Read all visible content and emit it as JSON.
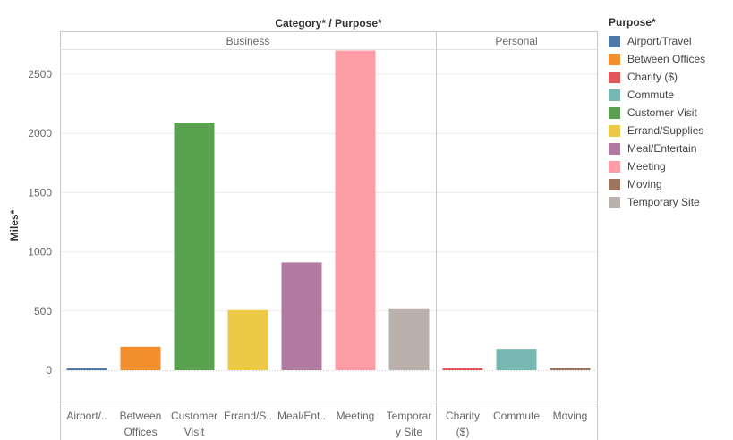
{
  "chart_data": {
    "type": "bar",
    "title": "Category* / Purpose*",
    "ylabel": "Miles*",
    "xlabel": "",
    "ylim": [
      0,
      2700
    ],
    "yticks": [
      0,
      500,
      1000,
      1500,
      2000,
      2500
    ],
    "grid": true,
    "legend_position": "right",
    "legend_title": "Purpose*",
    "panels": [
      {
        "name": "Business",
        "categories": [
          {
            "label": [
              "Airport/.."
            ],
            "purpose": "Airport/Travel",
            "value": 16
          },
          {
            "label": [
              "Between",
              "Offices"
            ],
            "purpose": "Between Offices",
            "value": 198
          },
          {
            "label": [
              "Customer",
              "Visit"
            ],
            "purpose": "Customer Visit",
            "value": 2090
          },
          {
            "label": [
              "Errand/S.."
            ],
            "purpose": "Errand/Supplies",
            "value": 508
          },
          {
            "label": [
              "Meal/Ent.."
            ],
            "purpose": "Meal/Entertain",
            "value": 911
          },
          {
            "label": [
              "Meeting"
            ],
            "purpose": "Meeting",
            "value": 2700
          },
          {
            "label": [
              "Temporar",
              "y Site"
            ],
            "purpose": "Temporary Site",
            "value": 523
          }
        ]
      },
      {
        "name": "Personal",
        "categories": [
          {
            "label": [
              "Charity",
              "($)"
            ],
            "purpose": "Charity ($)",
            "value": 16
          },
          {
            "label": [
              "Commute"
            ],
            "purpose": "Commute",
            "value": 180
          },
          {
            "label": [
              "Moving"
            ],
            "purpose": "Moving",
            "value": 18
          }
        ]
      }
    ],
    "legend": [
      {
        "name": "Airport/Travel",
        "color": "#4e79a7"
      },
      {
        "name": "Between Offices",
        "color": "#f28e2b"
      },
      {
        "name": "Charity ($)",
        "color": "#e15759"
      },
      {
        "name": "Commute",
        "color": "#76b7b2"
      },
      {
        "name": "Customer Visit",
        "color": "#59a14f"
      },
      {
        "name": "Errand/Supplies",
        "color": "#edc948"
      },
      {
        "name": "Meal/Entertain",
        "color": "#b07aa1"
      },
      {
        "name": "Meeting",
        "color": "#ff9da7"
      },
      {
        "name": "Moving",
        "color": "#9c755f"
      },
      {
        "name": "Temporary Site",
        "color": "#bab0ac"
      }
    ]
  }
}
